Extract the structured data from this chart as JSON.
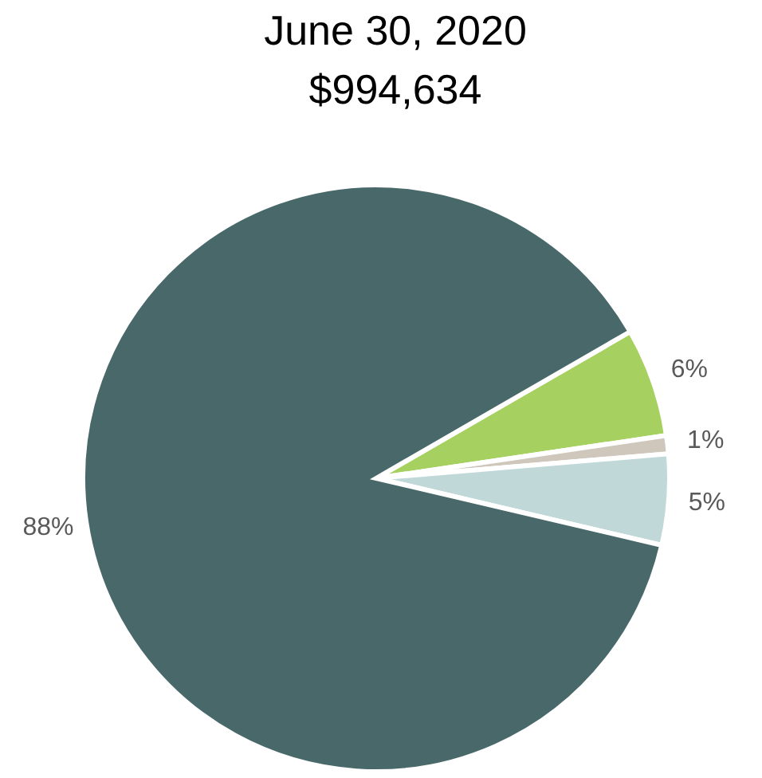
{
  "chart_data": {
    "type": "pie",
    "title": "June 30, 2020",
    "subtitle": "$994,634",
    "categories": [
      null,
      null,
      null,
      null
    ],
    "values": [
      6,
      1,
      5,
      88
    ],
    "colors": [
      "#a6d05f",
      "#cfc6bc",
      "#c0d8d8",
      "#486869"
    ],
    "value_labels": [
      "6%",
      "1%",
      "5%",
      "88%"
    ]
  }
}
